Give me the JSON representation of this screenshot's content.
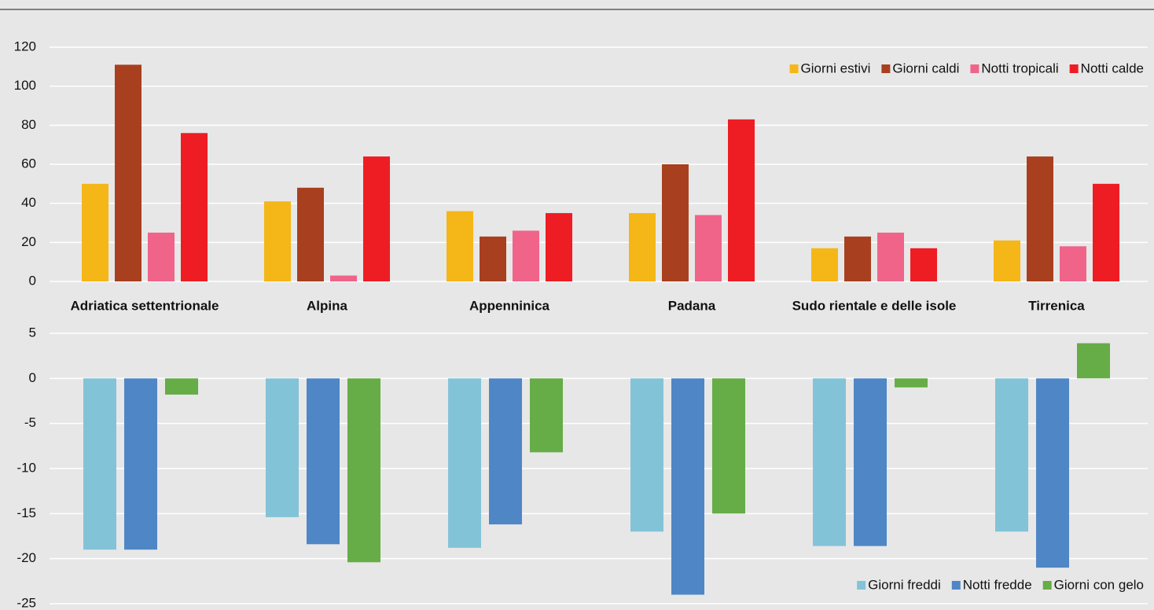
{
  "chart_data": [
    {
      "type": "bar",
      "categories": [
        "Adriatica settentrionale",
        "Alpina",
        "Appenninica",
        "Padana",
        "Sudo rientale e delle isole",
        "Tirrenica"
      ],
      "series": [
        {
          "name": "Giorni estivi",
          "color": "#f5b717",
          "values": [
            50,
            41,
            36,
            35,
            17,
            21
          ]
        },
        {
          "name": "Giorni caldi",
          "color": "#a8401f",
          "values": [
            111,
            48,
            23,
            60,
            23,
            64
          ]
        },
        {
          "name": "Notti tropicali",
          "color": "#f0648a",
          "values": [
            25,
            3,
            26,
            34,
            25,
            18
          ]
        },
        {
          "name": "Notti calde",
          "color": "#ee1d23",
          "values": [
            76,
            64,
            35,
            83,
            17,
            50
          ]
        }
      ],
      "ylim": [
        0,
        120
      ],
      "yticks": [
        0,
        20,
        40,
        60,
        80,
        100,
        120
      ],
      "grid": true,
      "legend": "upper right"
    },
    {
      "type": "bar",
      "series": [
        {
          "name": "Giorni freddi",
          "color": "#83c3d8",
          "values": [
            -19,
            -15.4,
            -18.8,
            -17,
            -18.6,
            -17
          ]
        },
        {
          "name": "Notti fredde",
          "color": "#4f86c6",
          "values": [
            -19,
            -18.4,
            -16.2,
            -24,
            -18.6,
            -21
          ]
        },
        {
          "name": "Giorni con gelo",
          "color": "#66ac47",
          "values": [
            -1.8,
            -20.4,
            -8.2,
            -15,
            -1,
            3.9
          ]
        }
      ],
      "ylim": [
        -25,
        5
      ],
      "yticks": [
        -25,
        -20,
        -15,
        -10,
        -5,
        0,
        5
      ],
      "grid": true,
      "legend": "lower right"
    }
  ]
}
